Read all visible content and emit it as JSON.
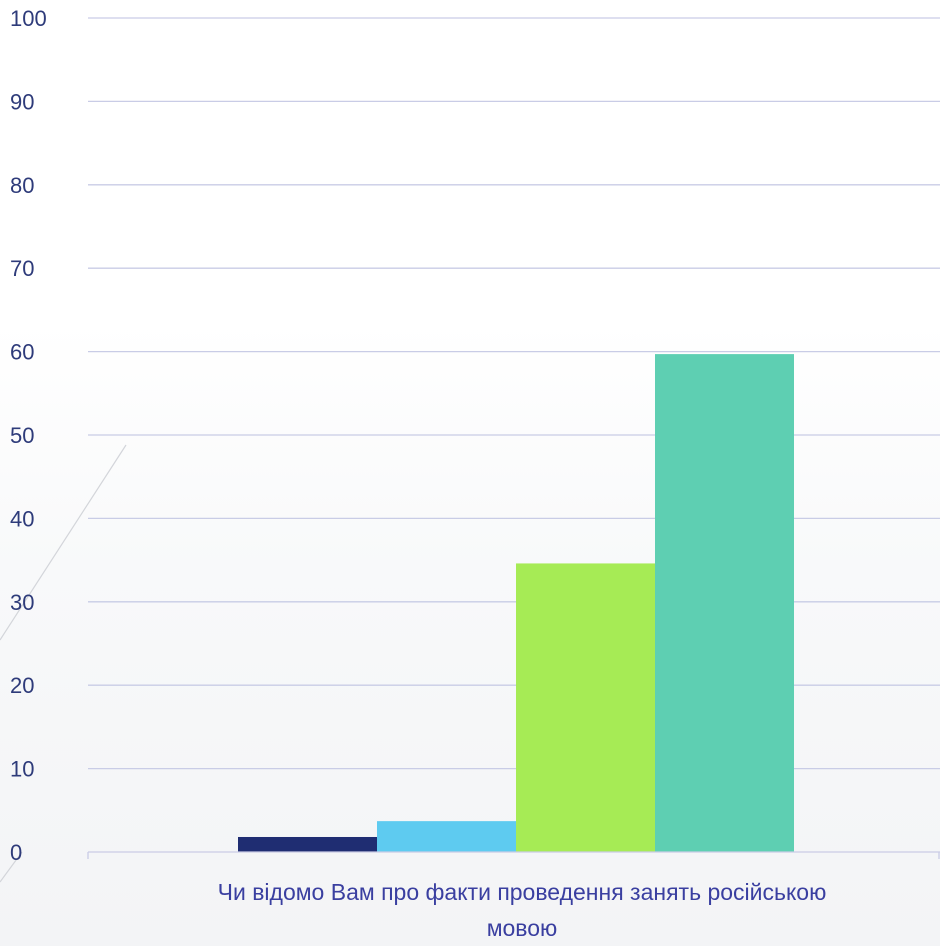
{
  "chart_data": {
    "type": "bar",
    "title": "",
    "xlabel": "",
    "ylabel": "",
    "categories": [
      "Чи відомо Вам про факти проведення занять російською мовою"
    ],
    "category_label_lines": [
      "Чи відомо Вам про факти проведення занять російською",
      "мовою"
    ],
    "series": [
      {
        "values": [
          1.8
        ],
        "color": "#1f2d72"
      },
      {
        "values": [
          3.7
        ],
        "color": "#5ecbf0"
      },
      {
        "values": [
          34.6
        ],
        "color": "#a6eb55"
      },
      {
        "values": [
          59.7
        ],
        "color": "#5ecfb2"
      }
    ],
    "ylim": [
      0,
      100
    ],
    "yticks": [
      "0",
      "10",
      "20",
      "30",
      "40",
      "50",
      "60",
      "70",
      "80",
      "90",
      "100"
    ],
    "grid": true,
    "legend": "none"
  }
}
